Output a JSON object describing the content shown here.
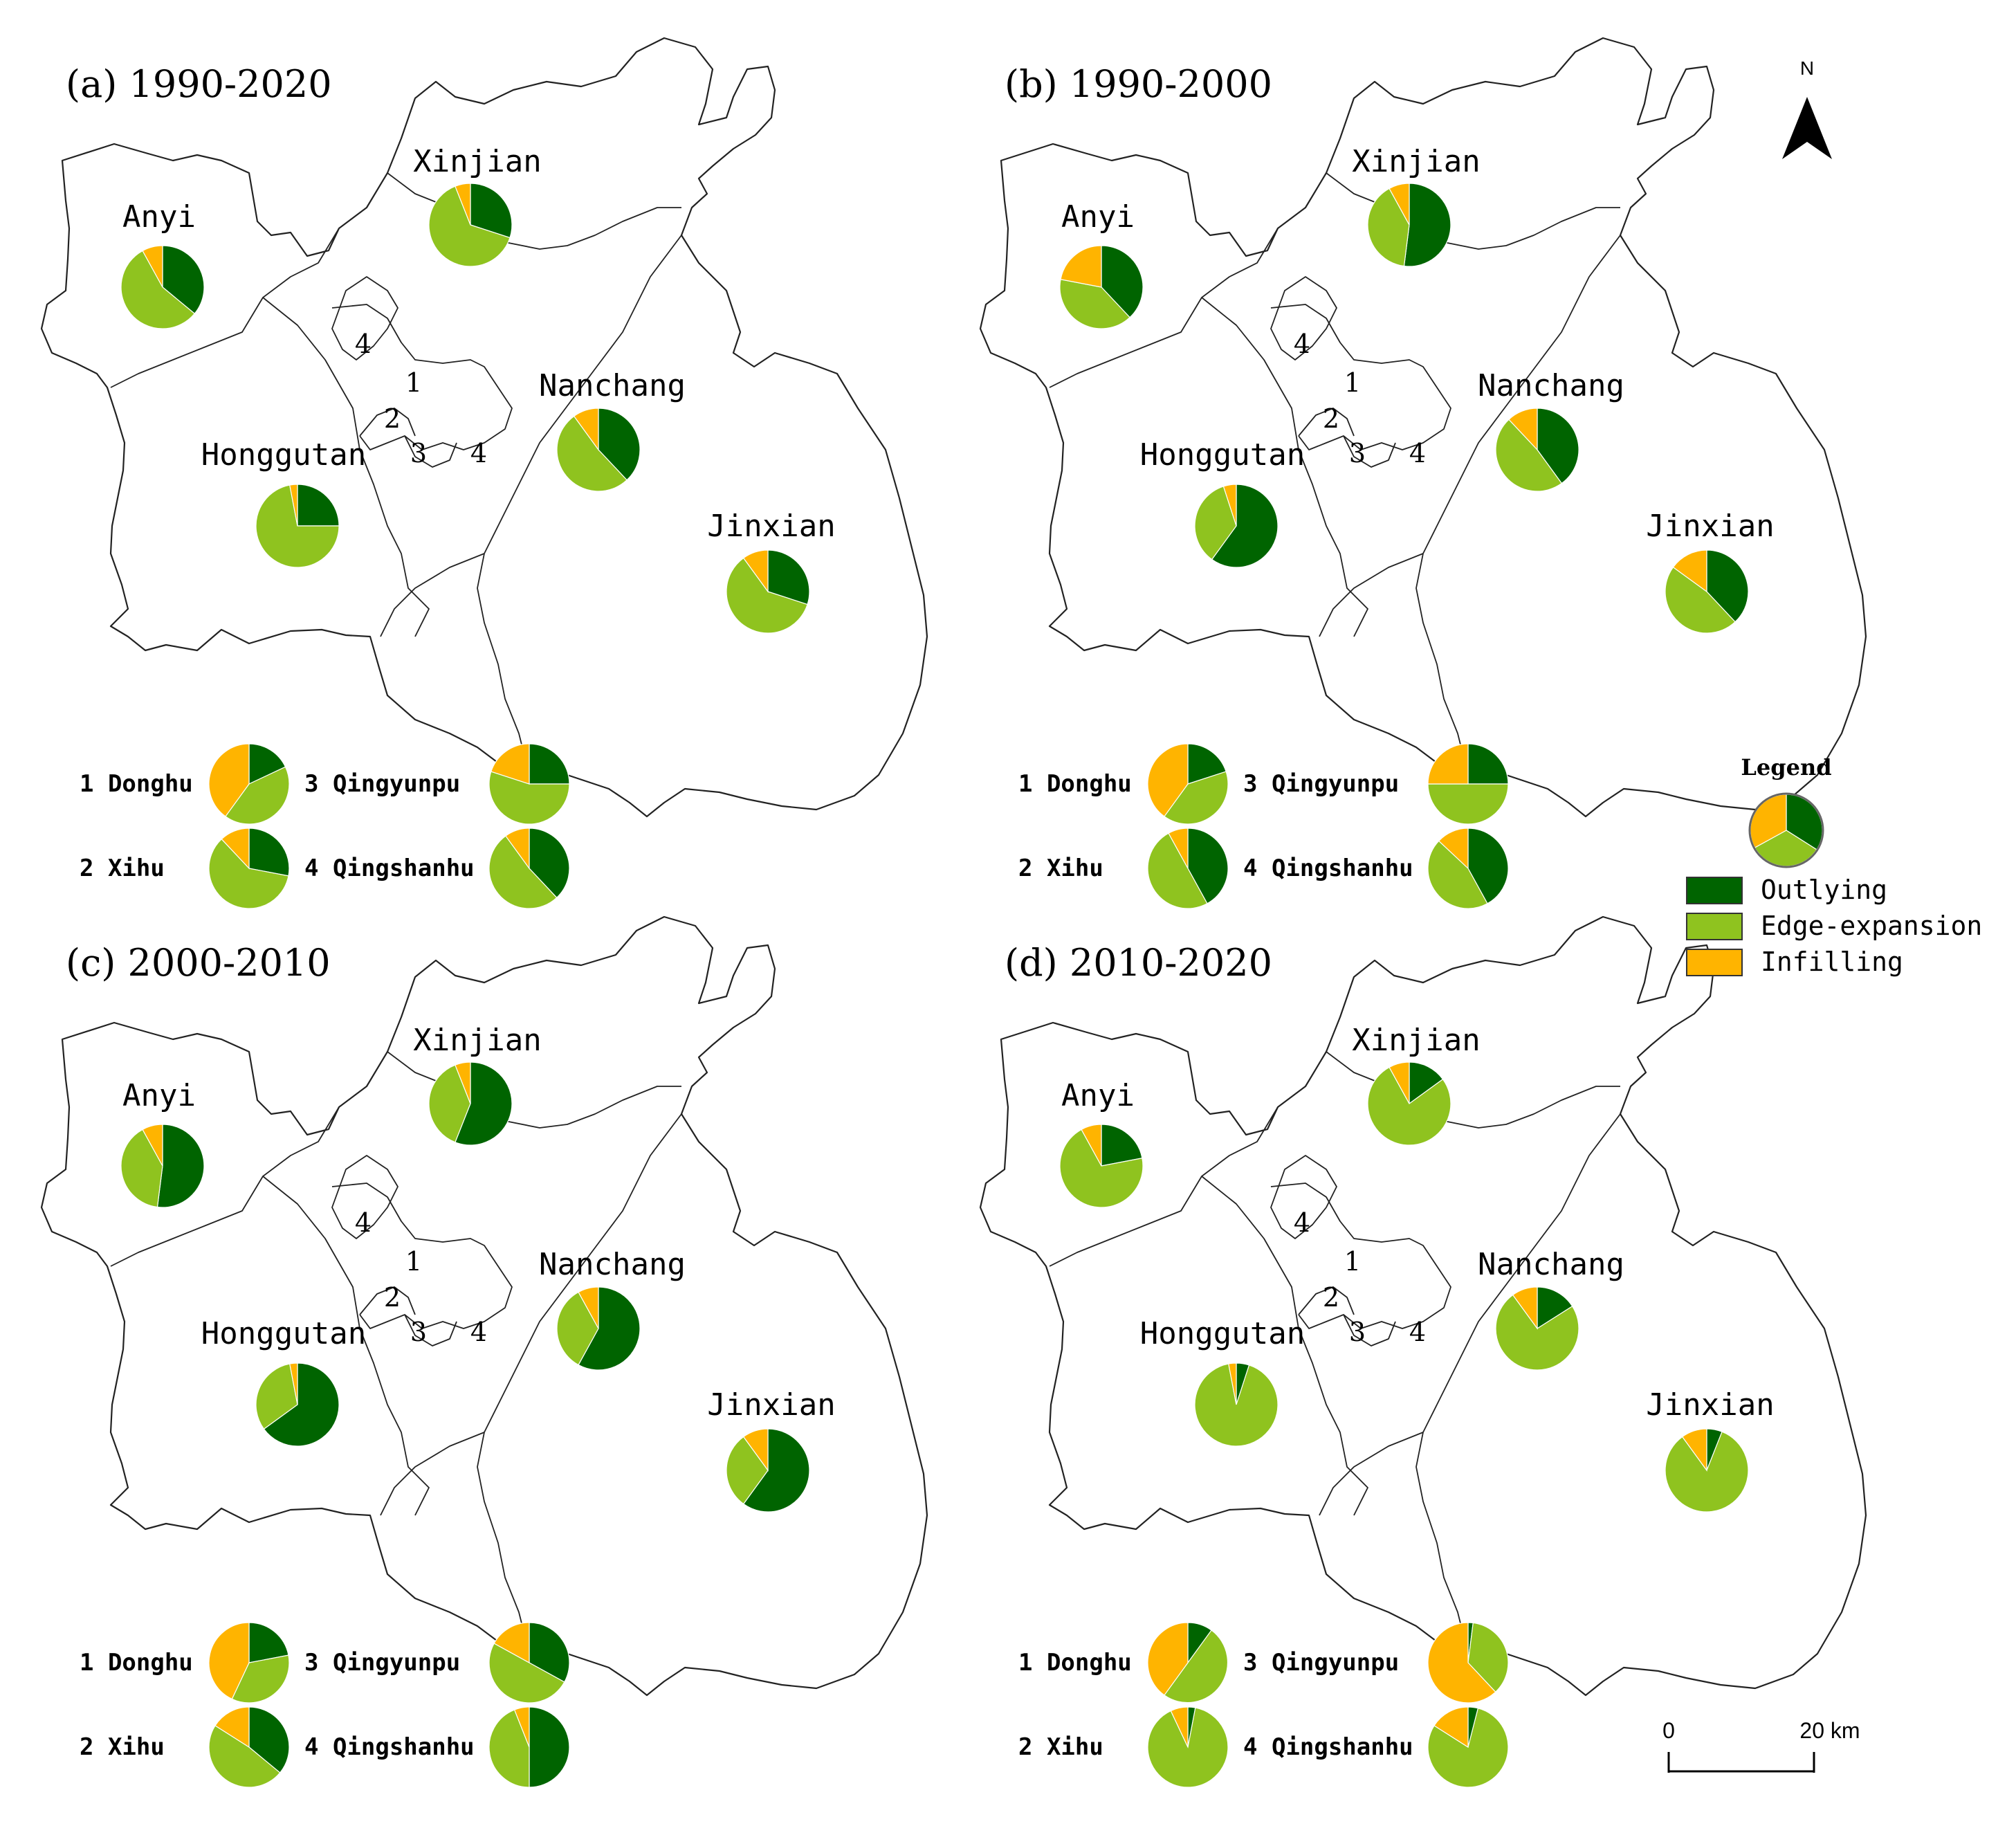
{
  "colors": {
    "outlying": "#006400",
    "edge_expansion": "#8fc31f",
    "infilling": "#ffb400",
    "boundary": "#222222"
  },
  "panels": [
    {
      "title": "(a) 1990-2020",
      "districts": [
        {
          "name": "Anyi",
          "shares": [
            0.36,
            0.56,
            0.08
          ]
        },
        {
          "name": "Xinjian",
          "shares": [
            0.3,
            0.64,
            0.06
          ]
        },
        {
          "name": "Nanchang",
          "shares": [
            0.38,
            0.52,
            0.1
          ]
        },
        {
          "name": "Honggutan",
          "shares": [
            0.25,
            0.72,
            0.03
          ]
        },
        {
          "name": "Jinxian",
          "shares": [
            0.3,
            0.6,
            0.1
          ]
        }
      ],
      "sub_districts": [
        {
          "label": "1 Donghu",
          "shares": [
            0.18,
            0.42,
            0.4
          ]
        },
        {
          "label": "3 Qingyunpu",
          "shares": [
            0.25,
            0.55,
            0.2
          ]
        },
        {
          "label": "2 Xihu",
          "shares": [
            0.28,
            0.6,
            0.12
          ]
        },
        {
          "label": "4 Qingshanhu",
          "shares": [
            0.38,
            0.52,
            0.1
          ]
        }
      ]
    },
    {
      "title": "(b) 1990-2000",
      "districts": [
        {
          "name": "Anyi",
          "shares": [
            0.38,
            0.4,
            0.22
          ]
        },
        {
          "name": "Xinjian",
          "shares": [
            0.52,
            0.4,
            0.08
          ]
        },
        {
          "name": "Nanchang",
          "shares": [
            0.4,
            0.48,
            0.12
          ]
        },
        {
          "name": "Honggutan",
          "shares": [
            0.6,
            0.35,
            0.05
          ]
        },
        {
          "name": "Jinxian",
          "shares": [
            0.38,
            0.47,
            0.15
          ]
        }
      ],
      "sub_districts": [
        {
          "label": "1 Donghu",
          "shares": [
            0.2,
            0.4,
            0.4
          ]
        },
        {
          "label": "3 Qingyunpu",
          "shares": [
            0.25,
            0.5,
            0.25
          ]
        },
        {
          "label": "2 Xihu",
          "shares": [
            0.42,
            0.5,
            0.08
          ]
        },
        {
          "label": "4 Qingshanhu",
          "shares": [
            0.42,
            0.45,
            0.13
          ]
        }
      ]
    },
    {
      "title": "(c) 2000-2010",
      "districts": [
        {
          "name": "Anyi",
          "shares": [
            0.52,
            0.4,
            0.08
          ]
        },
        {
          "name": "Xinjian",
          "shares": [
            0.56,
            0.38,
            0.06
          ]
        },
        {
          "name": "Nanchang",
          "shares": [
            0.58,
            0.34,
            0.08
          ]
        },
        {
          "name": "Honggutan",
          "shares": [
            0.65,
            0.32,
            0.03
          ]
        },
        {
          "name": "Jinxian",
          "shares": [
            0.6,
            0.3,
            0.1
          ]
        }
      ],
      "sub_districts": [
        {
          "label": "1 Donghu",
          "shares": [
            0.22,
            0.35,
            0.43
          ]
        },
        {
          "label": "3 Qingyunpu",
          "shares": [
            0.33,
            0.5,
            0.17
          ]
        },
        {
          "label": "2 Xihu",
          "shares": [
            0.36,
            0.48,
            0.16
          ]
        },
        {
          "label": "4 Qingshanhu",
          "shares": [
            0.5,
            0.44,
            0.06
          ]
        }
      ]
    },
    {
      "title": "(d) 2010-2020",
      "districts": [
        {
          "name": "Anyi",
          "shares": [
            0.22,
            0.7,
            0.08
          ]
        },
        {
          "name": "Xinjian",
          "shares": [
            0.15,
            0.77,
            0.08
          ]
        },
        {
          "name": "Nanchang",
          "shares": [
            0.16,
            0.74,
            0.1
          ]
        },
        {
          "name": "Honggutan",
          "shares": [
            0.05,
            0.92,
            0.03
          ]
        },
        {
          "name": "Jinxian",
          "shares": [
            0.06,
            0.84,
            0.1
          ]
        }
      ],
      "sub_districts": [
        {
          "label": "1 Donghu",
          "shares": [
            0.1,
            0.5,
            0.4
          ]
        },
        {
          "label": "3 Qingyunpu",
          "shares": [
            0.02,
            0.36,
            0.62
          ]
        },
        {
          "label": "2 Xihu",
          "shares": [
            0.03,
            0.9,
            0.07
          ]
        },
        {
          "label": "4 Qingshanhu",
          "shares": [
            0.04,
            0.8,
            0.16
          ]
        }
      ]
    }
  ],
  "map_numbers": [
    "4",
    "1",
    "2",
    "3",
    "4"
  ],
  "north_label": "N",
  "legend": {
    "title": "Legend",
    "items": [
      {
        "label": "Outlying",
        "color": "#006400"
      },
      {
        "label": "Edge-expansion",
        "color": "#8fc31f"
      },
      {
        "label": "Infilling",
        "color": "#ffb400"
      }
    ]
  },
  "scale_bar": {
    "start": "0",
    "end": "20 km"
  }
}
